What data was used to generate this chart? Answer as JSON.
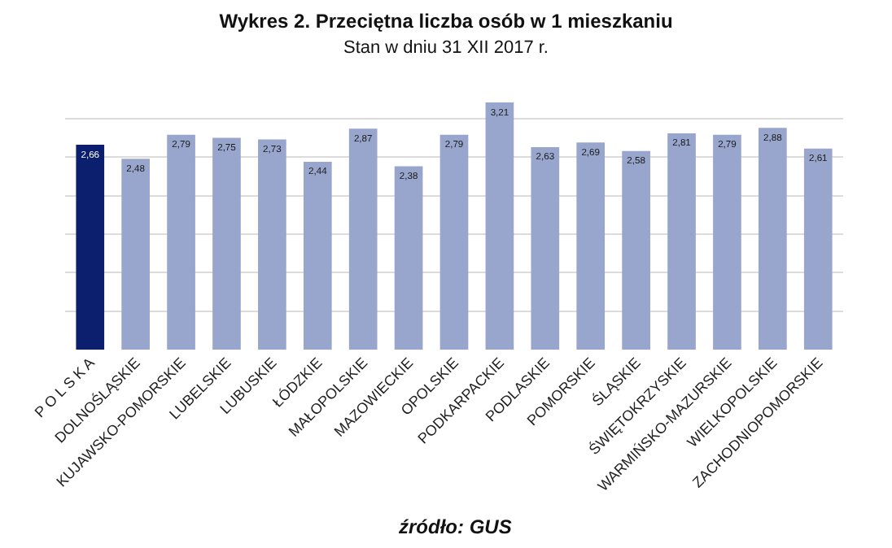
{
  "chart_data": {
    "type": "bar",
    "title": "Wykres 2. Przeciętna liczba osób w 1 mieszkaniu",
    "subtitle": "Stan w dniu 31 XII 2017 r.",
    "categories": [
      "P O L S K A",
      "DOLNOŚLĄSKIE",
      "KUJAWSKO-POMORSKIE",
      "LUBELSKIE",
      "LUBUSKIE",
      "ŁÓDZKIE",
      "MAŁOPOLSKIE",
      "MAZOWIECKIE",
      "OPOLSKIE",
      "PODKARPACKIE",
      "PODLASKIE",
      "POMORSKIE",
      "ŚLĄSKIE",
      "ŚWIĘTOKRZYSKIE",
      "WARMIŃSKO-MAZURSKIE",
      "WIELKOPOLSKIE",
      "ZACHODNIOPOMORSKIE"
    ],
    "values": [
      2.66,
      2.48,
      2.79,
      2.75,
      2.73,
      2.44,
      2.87,
      2.38,
      2.79,
      3.21,
      2.63,
      2.69,
      2.58,
      2.81,
      2.79,
      2.88,
      2.61
    ],
    "value_labels": [
      "2,66",
      "2,48",
      "2,79",
      "2,75",
      "2,73",
      "2,44",
      "2,87",
      "2,38",
      "2,79",
      "3,21",
      "2,63",
      "2,69",
      "2,58",
      "2,81",
      "2,79",
      "2,88",
      "2,61"
    ],
    "colors": [
      "#0b1f6e",
      "#98a5cd",
      "#98a5cd",
      "#98a5cd",
      "#98a5cd",
      "#98a5cd",
      "#98a5cd",
      "#98a5cd",
      "#98a5cd",
      "#98a5cd",
      "#98a5cd",
      "#98a5cd",
      "#98a5cd",
      "#98a5cd",
      "#98a5cd",
      "#98a5cd",
      "#98a5cd"
    ],
    "grid": "y",
    "tick_labels": "x",
    "annotations": [
      "źródło: GUS"
    ]
  }
}
